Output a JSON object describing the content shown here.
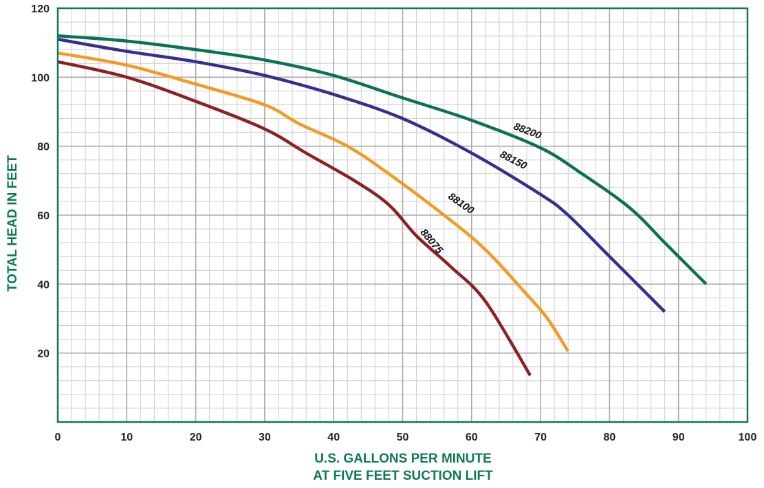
{
  "chart_data": {
    "type": "line",
    "xlabel": [
      "U.S. GALLONS PER MINUTE",
      "AT FIVE FEET SUCTION LIFT"
    ],
    "ylabel": "TOTAL HEAD IN FEET",
    "xlim": [
      0,
      100
    ],
    "ylim": [
      0,
      120
    ],
    "x_ticks": [
      0,
      10,
      20,
      30,
      40,
      50,
      60,
      70,
      80,
      90,
      100
    ],
    "y_ticks": [
      20,
      40,
      60,
      80,
      100,
      120
    ],
    "grid": true,
    "minor_grid_step": {
      "x": 2,
      "y": 4
    },
    "colors": {
      "axis_title": "#0b7a55",
      "frame": "#0b7a55",
      "major_grid": "#a8a8a8",
      "minor_grid": "#cdcdcd"
    },
    "series": [
      {
        "name": "88200",
        "color": "#0a7256",
        "label_at": {
          "x": 66,
          "y": 85,
          "angle": 21
        },
        "points": [
          [
            0,
            112
          ],
          [
            10,
            110.5
          ],
          [
            20,
            108
          ],
          [
            30,
            105
          ],
          [
            40,
            100.5
          ],
          [
            50,
            94
          ],
          [
            60,
            87.5
          ],
          [
            70,
            79.5
          ],
          [
            76,
            72
          ],
          [
            83,
            62
          ],
          [
            88,
            52
          ],
          [
            94,
            40
          ]
        ]
      },
      {
        "name": "88150",
        "color": "#34308e",
        "label_at": {
          "x": 64,
          "y": 77,
          "angle": 27
        },
        "points": [
          [
            0,
            111
          ],
          [
            10,
            107.5
          ],
          [
            20,
            104.5
          ],
          [
            30,
            100.5
          ],
          [
            40,
            95
          ],
          [
            50,
            88
          ],
          [
            60,
            78
          ],
          [
            70,
            66
          ],
          [
            74,
            60
          ],
          [
            80,
            48
          ],
          [
            88,
            32
          ]
        ]
      },
      {
        "name": "88100",
        "color": "#f49a22",
        "label_at": {
          "x": 56.5,
          "y": 65,
          "angle": 35
        },
        "points": [
          [
            0,
            107
          ],
          [
            10,
            103.5
          ],
          [
            20,
            98
          ],
          [
            30,
            92
          ],
          [
            35,
            86.5
          ],
          [
            42,
            80
          ],
          [
            48,
            72
          ],
          [
            56,
            60
          ],
          [
            62,
            50
          ],
          [
            68,
            37
          ],
          [
            71,
            30
          ],
          [
            74,
            20.5
          ]
        ]
      },
      {
        "name": "88075",
        "color": "#8c2024",
        "label_at": {
          "x": 52.5,
          "y": 55,
          "angle": 50
        },
        "points": [
          [
            0,
            104.5
          ],
          [
            10,
            100
          ],
          [
            20,
            93
          ],
          [
            30,
            85
          ],
          [
            36,
            78
          ],
          [
            43,
            70
          ],
          [
            48,
            63
          ],
          [
            52,
            54
          ],
          [
            57,
            45
          ],
          [
            62,
            35
          ],
          [
            68.5,
            13.5
          ]
        ]
      }
    ]
  }
}
